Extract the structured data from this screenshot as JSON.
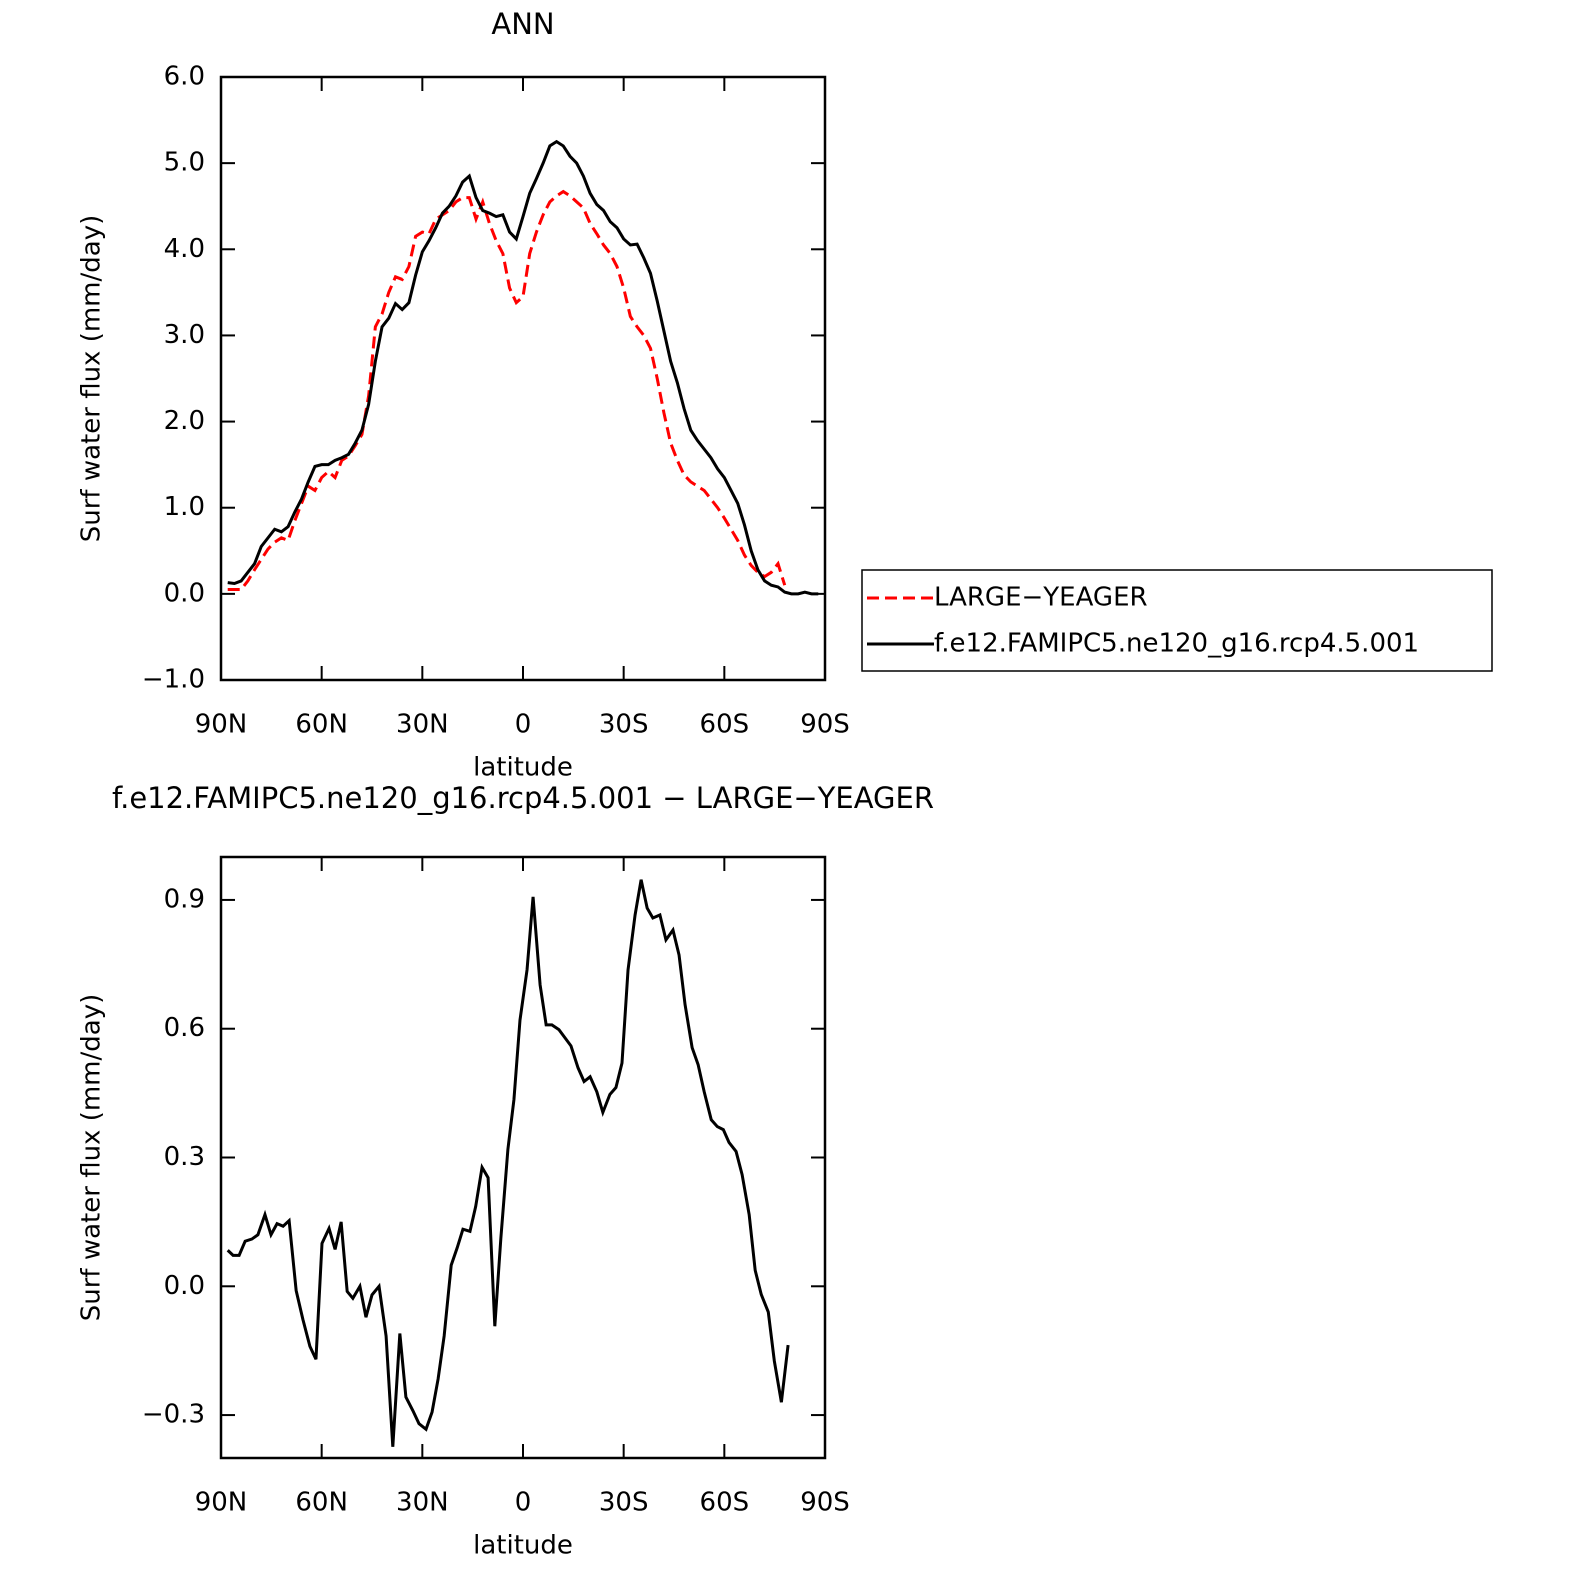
{
  "chart_data": [
    {
      "type": "line",
      "title": "ANN",
      "ylabel": "Surf water flux (mm/day)",
      "xlabel": "latitude",
      "x": [
        88,
        86,
        84,
        82,
        80,
        78,
        76,
        74,
        72,
        70,
        68,
        66,
        64,
        62,
        60,
        58,
        56,
        54,
        52,
        50,
        48,
        46,
        44,
        42,
        40,
        38,
        36,
        34,
        32,
        30,
        28,
        26,
        24,
        22,
        20,
        18,
        16,
        14,
        12,
        10,
        8,
        6,
        4,
        2,
        0,
        -2,
        -4,
        -6,
        -8,
        -10,
        -12,
        -14,
        -16,
        -18,
        -20,
        -22,
        -24,
        -26,
        -28,
        -30,
        -32,
        -34,
        -36,
        -38,
        -40,
        -42,
        -44,
        -46,
        -48,
        -50,
        -52,
        -54,
        -56,
        -58,
        -60,
        -62,
        -64,
        -66,
        -68,
        -70,
        -72,
        -74,
        -76,
        -78,
        -80,
        -82,
        -84,
        -86,
        -88
      ],
      "series": [
        {
          "name": "LARGE−YEAGER",
          "color": "#ff0000",
          "line_style": "dashed",
          "values": [
            0.05,
            0.05,
            0.05,
            0.15,
            0.28,
            0.4,
            0.52,
            0.6,
            0.65,
            0.62,
            0.85,
            1.05,
            1.25,
            1.2,
            1.35,
            1.42,
            1.35,
            1.55,
            1.6,
            1.72,
            1.85,
            2.3,
            3.1,
            3.25,
            3.5,
            3.68,
            3.65,
            3.8,
            4.15,
            4.2,
            4.18,
            4.35,
            4.4,
            4.45,
            4.55,
            4.6,
            4.6,
            4.35,
            4.55,
            4.3,
            4.1,
            3.95,
            3.55,
            3.38,
            3.45,
            3.95,
            4.2,
            4.4,
            4.55,
            4.62,
            4.67,
            4.62,
            4.55,
            4.48,
            4.3,
            4.18,
            4.05,
            3.95,
            3.8,
            3.55,
            3.22,
            3.1,
            3.0,
            2.85,
            2.5,
            2.1,
            1.75,
            1.55,
            1.38,
            1.3,
            1.25,
            1.2,
            1.1,
            1.0,
            0.88,
            0.75,
            0.62,
            0.45,
            0.33,
            0.25,
            0.2,
            0.25,
            0.35,
            0.1,
            null,
            null,
            null,
            null,
            null
          ]
        },
        {
          "name": "f.e12.FAMIPC5.ne120_g16.rcp4.5.001",
          "color": "#000000",
          "line_style": "solid",
          "values": [
            0.13,
            0.12,
            0.15,
            0.25,
            0.35,
            0.55,
            0.65,
            0.75,
            0.72,
            0.78,
            0.95,
            1.1,
            1.3,
            1.48,
            1.5,
            1.5,
            1.55,
            1.58,
            1.62,
            1.75,
            1.9,
            2.2,
            2.7,
            3.1,
            3.2,
            3.37,
            3.3,
            3.38,
            3.7,
            3.97,
            4.1,
            4.25,
            4.42,
            4.5,
            4.62,
            4.78,
            4.85,
            4.6,
            4.45,
            4.42,
            4.38,
            4.4,
            4.2,
            4.12,
            4.38,
            4.65,
            4.82,
            5.0,
            5.2,
            5.25,
            5.2,
            5.08,
            5.0,
            4.85,
            4.65,
            4.52,
            4.45,
            4.32,
            4.25,
            4.12,
            4.05,
            4.06,
            3.9,
            3.72,
            3.4,
            3.05,
            2.7,
            2.45,
            2.15,
            1.9,
            1.78,
            1.68,
            1.58,
            1.45,
            1.35,
            1.2,
            1.05,
            0.8,
            0.5,
            0.28,
            0.15,
            0.1,
            0.08,
            0.02,
            0.0,
            0.0,
            0.02,
            0.0,
            0.0
          ]
        }
      ],
      "xlim": [
        90,
        -90
      ],
      "xticks": [
        {
          "value": 90,
          "label": "90N"
        },
        {
          "value": 60,
          "label": "60N"
        },
        {
          "value": 30,
          "label": "30N"
        },
        0,
        {
          "value": -30,
          "label": "30S"
        },
        {
          "value": -60,
          "label": "60S"
        },
        {
          "value": -90,
          "label": "90S"
        }
      ],
      "ylim": [
        -1,
        6
      ],
      "yticks": [
        {
          "value": -1,
          "label": "−1.0"
        },
        {
          "value": 0,
          "label": "0.0"
        },
        {
          "value": 1,
          "label": "1.0"
        },
        {
          "value": 2,
          "label": "2.0"
        },
        {
          "value": 3,
          "label": "3.0"
        },
        {
          "value": 4,
          "label": "4.0"
        },
        {
          "value": 5,
          "label": "5.0"
        },
        {
          "value": 6,
          "label": "6.0"
        }
      ],
      "legend": "right"
    },
    {
      "type": "line",
      "title": "f.e12.FAMIPC5.ne120_g16.rcp4.5.001 − LARGE−YEAGER",
      "ylabel": "Surf water flux (mm/day)",
      "xlabel": "latitude",
      "x": [
        88,
        86.4,
        84.6,
        82.8,
        80.8,
        79,
        76.9,
        75.1,
        73.3,
        71.5,
        69.7,
        67.6,
        65.6,
        63.5,
        61.7,
        59.9,
        57.8,
        56,
        54.2,
        52.4,
        50.7,
        48.6,
        46.8,
        45,
        42.9,
        40.8,
        38.8,
        36.7,
        34.9,
        32.8,
        31,
        28.9,
        27.1,
        25.3,
        23.5,
        21.4,
        19.6,
        17.9,
        15.8,
        14.1,
        12.2,
        10.4,
        8.4,
        6.6,
        4.5,
        2.7,
        0.9,
        -1.2,
        -3,
        -5.1,
        -6.9,
        -8.6,
        -10.7,
        -12.5,
        -14.3,
        -16.4,
        -18.2,
        -20,
        -22,
        -23.8,
        -25.9,
        -27.7,
        -29.5,
        -31.3,
        -33.4,
        -35.2,
        -37,
        -38.7,
        -40.8,
        -42.6,
        -44.7,
        -46.5,
        -48.3,
        -50.4,
        -52.2,
        -54,
        -56.1,
        -57.9,
        -59.7,
        -61.4,
        -63.5,
        -65.3,
        -67.4,
        -69.2,
        -71,
        -73.1,
        -74.9,
        -77,
        -79
      ],
      "series": [
        {
          "color": "#000000",
          "line_style": "solid",
          "values": [
            0.084,
            0.072,
            0.072,
            0.105,
            0.11,
            0.12,
            0.167,
            0.12,
            0.146,
            0.14,
            0.153,
            -0.01,
            -0.077,
            -0.14,
            -0.17,
            0.1,
            0.135,
            0.086,
            0.15,
            -0.012,
            -0.028,
            0.0,
            -0.072,
            -0.02,
            0.0,
            -0.116,
            -0.374,
            -0.11,
            -0.258,
            -0.29,
            -0.32,
            -0.333,
            -0.293,
            -0.216,
            -0.116,
            0.049,
            0.09,
            0.133,
            0.128,
            0.186,
            0.277,
            0.253,
            -0.093,
            0.112,
            0.319,
            0.435,
            0.62,
            0.737,
            0.907,
            0.702,
            0.609,
            0.609,
            0.598,
            0.579,
            0.56,
            0.509,
            0.477,
            0.488,
            0.453,
            0.405,
            0.447,
            0.463,
            0.52,
            0.737,
            0.865,
            0.947,
            0.881,
            0.858,
            0.865,
            0.807,
            0.83,
            0.772,
            0.656,
            0.556,
            0.516,
            0.453,
            0.388,
            0.372,
            0.365,
            0.335,
            0.314,
            0.26,
            0.167,
            0.037,
            -0.019,
            -0.06,
            -0.174,
            -0.27,
            -0.137
          ]
        }
      ],
      "xlim": [
        90,
        -90
      ],
      "xticks": [
        {
          "value": 90,
          "label": "90N"
        },
        {
          "value": 60,
          "label": "60N"
        },
        {
          "value": 30,
          "label": "30N"
        },
        0,
        {
          "value": -30,
          "label": "30S"
        },
        {
          "value": -60,
          "label": "60S"
        },
        {
          "value": -90,
          "label": "90S"
        }
      ],
      "ylim": [
        -0.4,
        1.0
      ],
      "yticks": [
        {
          "value": -0.3,
          "label": "−0.3"
        },
        {
          "value": 0,
          "label": "0.0"
        },
        0.3,
        0.6,
        0.9
      ]
    }
  ]
}
